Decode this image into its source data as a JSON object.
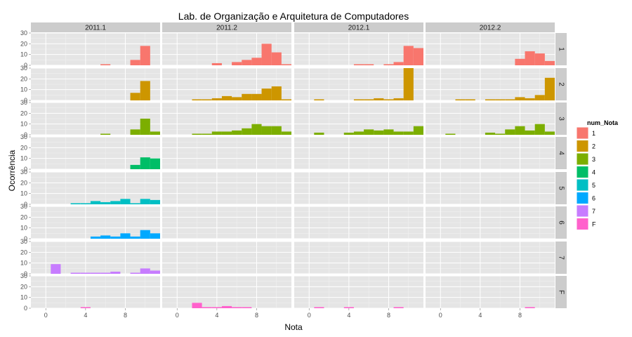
{
  "chart_data": {
    "type": "histogram-facet-grid",
    "title": "Lab. de Organização e Arquitetura de Computadores",
    "xlabel": "Nota",
    "ylabel": "Ocorrência",
    "columns": [
      "2011.1",
      "2011.2",
      "2012.1",
      "2012.2"
    ],
    "rows": [
      "1",
      "2",
      "3",
      "4",
      "5",
      "6",
      "7",
      "F"
    ],
    "x_ticks": [
      "0",
      "4",
      "8"
    ],
    "x_tick_values": [
      0,
      4,
      8
    ],
    "y_ticks": [
      "0",
      "10",
      "20",
      "30"
    ],
    "y_tick_values": [
      0,
      10,
      20,
      30
    ],
    "xlim": [
      -1.5,
      11.5
    ],
    "ylim": [
      0,
      30
    ],
    "bin_start": -0.5,
    "bin_width": 1,
    "bins": 12,
    "legend": {
      "title": "num_Nota",
      "position": "right",
      "items": [
        {
          "label": "1",
          "color": "#F8766D"
        },
        {
          "label": "2",
          "color": "#CD9600"
        },
        {
          "label": "3",
          "color": "#7CAE00"
        },
        {
          "label": "4",
          "color": "#00BE67"
        },
        {
          "label": "5",
          "color": "#00BFC4"
        },
        {
          "label": "6",
          "color": "#00A9FF"
        },
        {
          "label": "7",
          "color": "#C77CFF"
        },
        {
          "label": "F",
          "color": "#FF61CC"
        }
      ]
    },
    "series": [
      {
        "name": "1",
        "values": [
          [
            0,
            0,
            0,
            0,
            0,
            0,
            1,
            0,
            0,
            5,
            18,
            0
          ],
          [
            0,
            0,
            0,
            0,
            2,
            0,
            3,
            5,
            7,
            20,
            12,
            1
          ],
          [
            0,
            0,
            0,
            0,
            0,
            1,
            1,
            0,
            1,
            3,
            18,
            16
          ],
          [
            0,
            0,
            0,
            0,
            0,
            0,
            0,
            0,
            6,
            13,
            11,
            4
          ]
        ]
      },
      {
        "name": "2",
        "values": [
          [
            0,
            0,
            0,
            0,
            0,
            0,
            0,
            0,
            0,
            7,
            18,
            0
          ],
          [
            0,
            0,
            1,
            1,
            2,
            4,
            3,
            6,
            6,
            11,
            13,
            1
          ],
          [
            0,
            1,
            0,
            0,
            0,
            1,
            1,
            2,
            1,
            2,
            30,
            0
          ],
          [
            0,
            0,
            1,
            1,
            0,
            1,
            1,
            1,
            3,
            2,
            5,
            21
          ]
        ]
      },
      {
        "name": "3",
        "values": [
          [
            0,
            0,
            0,
            0,
            0,
            0,
            1,
            0,
            0,
            5,
            15,
            3
          ],
          [
            0,
            0,
            1,
            1,
            3,
            3,
            4,
            6,
            10,
            8,
            8,
            3
          ],
          [
            0,
            2,
            0,
            0,
            2,
            3,
            5,
            4,
            5,
            3,
            3,
            8
          ],
          [
            0,
            1,
            0,
            0,
            0,
            2,
            1,
            5,
            8,
            4,
            10,
            3
          ]
        ]
      },
      {
        "name": "4",
        "values": [
          [
            0,
            0,
            0,
            0,
            0,
            0,
            0,
            0,
            0,
            4,
            11,
            10
          ],
          [
            0,
            0,
            0,
            0,
            0,
            0,
            0,
            0,
            0,
            0,
            0,
            0
          ],
          [
            0,
            0,
            0,
            0,
            0,
            0,
            0,
            0,
            0,
            0,
            0,
            0
          ],
          [
            0,
            0,
            0,
            0,
            0,
            0,
            0,
            0,
            0,
            0,
            0,
            0
          ]
        ]
      },
      {
        "name": "5",
        "values": [
          [
            0,
            0,
            0,
            1,
            1,
            3,
            2,
            3,
            5,
            1,
            5,
            4
          ],
          [
            0,
            0,
            0,
            0,
            0,
            0,
            0,
            0,
            0,
            0,
            0,
            0
          ],
          [
            0,
            0,
            0,
            0,
            0,
            0,
            0,
            0,
            0,
            0,
            0,
            0
          ],
          [
            0,
            0,
            0,
            0,
            0,
            0,
            0,
            0,
            0,
            0,
            0,
            0
          ]
        ]
      },
      {
        "name": "6",
        "values": [
          [
            0,
            0,
            0,
            0,
            0,
            2,
            3,
            2,
            5,
            2,
            8,
            5
          ],
          [
            0,
            0,
            0,
            0,
            0,
            0,
            0,
            0,
            0,
            0,
            0,
            0
          ],
          [
            0,
            0,
            0,
            0,
            0,
            0,
            0,
            0,
            0,
            0,
            0,
            0
          ],
          [
            0,
            0,
            0,
            0,
            0,
            0,
            0,
            0,
            0,
            0,
            0,
            0
          ]
        ]
      },
      {
        "name": "7",
        "values": [
          [
            0,
            9,
            0,
            1,
            1,
            1,
            1,
            2,
            0,
            1,
            5,
            3
          ],
          [
            0,
            0,
            0,
            0,
            0,
            0,
            0,
            0,
            0,
            0,
            0,
            0
          ],
          [
            0,
            0,
            0,
            0,
            0,
            0,
            0,
            0,
            0,
            0,
            0,
            0
          ],
          [
            0,
            0,
            0,
            0,
            0,
            0,
            0,
            0,
            0,
            0,
            0,
            0
          ]
        ]
      },
      {
        "name": "F",
        "values": [
          [
            0,
            0,
            0,
            0,
            1,
            0,
            0,
            0,
            0,
            0,
            0,
            0
          ],
          [
            0,
            0,
            5,
            1,
            1,
            2,
            1,
            1,
            0,
            0,
            0,
            0
          ],
          [
            0,
            1,
            0,
            0,
            1,
            0,
            0,
            0,
            0,
            1,
            0,
            0
          ],
          [
            0,
            0,
            0,
            0,
            0,
            0,
            0,
            0,
            0,
            1,
            0,
            0
          ]
        ]
      }
    ]
  }
}
